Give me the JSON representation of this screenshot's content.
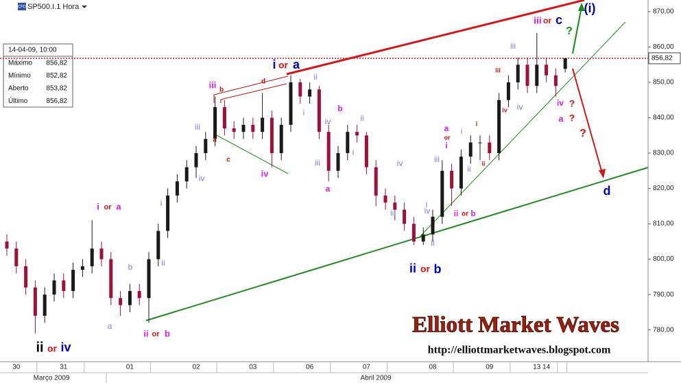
{
  "chart_data": {
    "type": "candlestick",
    "symbol": "SP500.I.1 Hora",
    "badge": "CFD",
    "info": {
      "date": "14-04-09, 10:00",
      "rows": [
        [
          "Máximo",
          "856,82"
        ],
        [
          "Mínimo",
          "852,82"
        ],
        [
          "Aberto",
          "853,82"
        ],
        [
          "Último",
          "856,82"
        ]
      ]
    },
    "categories": [
      null,
      "30",
      null,
      null,
      null,
      null,
      "31",
      null,
      null,
      null,
      null,
      null,
      null,
      "01",
      null,
      null,
      null,
      null,
      null,
      null,
      "02",
      null,
      null,
      null,
      null,
      null,
      "03",
      null,
      null,
      null,
      null,
      null,
      "06",
      null,
      null,
      null,
      null,
      null,
      "07",
      null,
      null,
      null,
      null,
      null,
      null,
      "08",
      null,
      null,
      null,
      null,
      null,
      "09",
      null,
      null,
      null,
      null,
      "13",
      "14",
      null,
      null
    ],
    "months": [
      "Março 2009",
      "Abril 2009"
    ],
    "open": [
      805,
      803,
      798,
      792,
      784,
      790,
      794,
      791,
      797,
      798,
      803,
      800,
      789,
      787,
      791,
      789,
      800,
      808,
      818,
      822,
      826,
      830,
      834,
      843,
      837,
      836,
      838,
      836,
      840,
      830,
      838,
      850,
      846,
      848,
      836,
      825,
      830,
      836,
      835,
      826,
      818,
      816,
      814,
      810,
      805,
      807,
      812,
      825,
      820,
      829,
      833,
      833,
      830,
      845,
      850,
      855,
      849,
      855,
      852,
      853.82
    ],
    "high": [
      807,
      805,
      800,
      794,
      792,
      796,
      796,
      799,
      800,
      811,
      805,
      802,
      791,
      793,
      793,
      802,
      810,
      820,
      824,
      828,
      832,
      836,
      846,
      845,
      839,
      840,
      840,
      847,
      842,
      840,
      852,
      851,
      850,
      849,
      838,
      832,
      838,
      838,
      836,
      828,
      820,
      818,
      816,
      812,
      809,
      814,
      828,
      827,
      831,
      835,
      835,
      835,
      847,
      852,
      857,
      857,
      864,
      857,
      854,
      856.82
    ],
    "low": [
      801,
      796,
      790,
      779,
      782,
      788,
      789,
      789,
      795,
      796,
      798,
      787,
      784,
      785,
      787,
      782,
      798,
      806,
      816,
      820,
      823,
      828,
      832,
      835,
      834,
      834,
      834,
      834,
      826,
      828,
      836,
      844,
      844,
      834,
      822,
      823,
      828,
      833,
      824,
      815,
      814,
      811,
      808,
      804,
      804,
      805,
      810,
      815,
      818,
      827,
      828,
      828,
      828,
      843,
      848,
      847,
      847,
      850,
      846,
      852.82
    ],
    "close": [
      803,
      798,
      792,
      784,
      790,
      794,
      791,
      797,
      798,
      803,
      800,
      789,
      787,
      791,
      789,
      800,
      808,
      818,
      822,
      826,
      830,
      834,
      843,
      837,
      836,
      838,
      836,
      840,
      830,
      838,
      850,
      846,
      848,
      836,
      825,
      830,
      836,
      835,
      826,
      818,
      816,
      814,
      810,
      805,
      807,
      812,
      825,
      820,
      829,
      833,
      833,
      830,
      845,
      850,
      855,
      849,
      855,
      852,
      849,
      856.82
    ],
    "up_color": "#1a1a1a",
    "down_color": "#a0103a",
    "ylim": [
      771,
      873.3
    ],
    "yticks": [
      780,
      790,
      800,
      810,
      820,
      830,
      840,
      850,
      860,
      870
    ],
    "ytick_labels": [
      "780,00",
      "790,00",
      "800,00",
      "810,00",
      "820,00",
      "830,00",
      "840,00",
      "850,00",
      "860,00",
      "870,00"
    ],
    "last_price": {
      "value": 856.82,
      "label": "856,82"
    },
    "annotations": [
      {
        "text": "i",
        "color": "#0000c0"
      },
      {
        "text": "or",
        "color": "#e01010"
      },
      {
        "text": "a",
        "color": "#0000c0"
      },
      {
        "text": "ii",
        "color": "#000000"
      },
      {
        "text": "or",
        "color": "#e01010"
      },
      {
        "text": "iv",
        "color": "#0000c0"
      },
      {
        "text": "ii",
        "color": "#0000c0"
      },
      {
        "text": "or",
        "color": "#e01010"
      },
      {
        "text": "b",
        "color": "#0000c0"
      },
      {
        "text": "c",
        "color": "#0000c0"
      },
      {
        "text": "(i)",
        "color": "#0000c0"
      },
      {
        "text": "d",
        "color": "#0000c0"
      },
      {
        "text": "iii",
        "color": "#e020e0"
      },
      {
        "text": "or",
        "color": "#e01010"
      },
      {
        "text": "i",
        "color": "#e020e0"
      },
      {
        "text": "or",
        "color": "#e01010"
      },
      {
        "text": "a",
        "color": "#e020e0"
      },
      {
        "text": "ii",
        "color": "#e020e0"
      },
      {
        "text": "or",
        "color": "#e01010"
      },
      {
        "text": "b",
        "color": "#e020e0"
      },
      {
        "text": "iii",
        "color": "#e020e0"
      },
      {
        "text": "iv",
        "color": "#e020e0"
      },
      {
        "text": "b",
        "color": "#e020e0"
      },
      {
        "text": "a",
        "color": "#e020e0"
      },
      {
        "text": "a",
        "color": "#e020e0"
      },
      {
        "text": "i",
        "color": "#e020e0"
      },
      {
        "text": "ii",
        "color": "#e020e0"
      },
      {
        "text": "or",
        "color": "#e01010"
      },
      {
        "text": "b",
        "color": "#e020e0"
      },
      {
        "text": "iv",
        "color": "#e020e0"
      },
      {
        "text": "a",
        "color": "#e020e0"
      },
      {
        "text": "?",
        "color": "#1a8a1a"
      },
      {
        "text": "?",
        "color": "#e01010"
      },
      {
        "text": "?",
        "color": "#e01010"
      },
      {
        "text": "?",
        "color": "#e01010"
      },
      {
        "text": "iii",
        "color": "#8080e0"
      },
      {
        "text": "iv",
        "color": "#8080e0"
      },
      {
        "text": "i",
        "color": "#8080e0"
      },
      {
        "text": "ii",
        "color": "#8080e0"
      },
      {
        "text": "b",
        "color": "#8080e0"
      },
      {
        "text": "a",
        "color": "#8080e0"
      },
      {
        "text": "ii",
        "color": "#8080e0"
      },
      {
        "text": "i",
        "color": "#8080e0"
      },
      {
        "text": "iv",
        "color": "#8080e0"
      },
      {
        "text": "iii",
        "color": "#8080e0"
      },
      {
        "text": "ii",
        "color": "#8080e0"
      },
      {
        "text": "i",
        "color": "#8080e0"
      },
      {
        "text": "iv",
        "color": "#8080e0"
      },
      {
        "text": "iii",
        "color": "#8080e0"
      },
      {
        "text": "ii",
        "color": "#8080e0"
      },
      {
        "text": "i",
        "color": "#8080e0"
      },
      {
        "text": "iv",
        "color": "#8080e0"
      },
      {
        "text": "iii",
        "color": "#8080e0"
      },
      {
        "text": "i",
        "color": "#8080e0"
      },
      {
        "text": "ii",
        "color": "#8080e0"
      },
      {
        "text": "iii",
        "color": "#8080e0"
      },
      {
        "text": "iv",
        "color": "#8080e0"
      },
      {
        "text": "b",
        "color": "#c01010"
      },
      {
        "text": "d",
        "color": "#c01010"
      },
      {
        "text": "a",
        "color": "#c01010"
      },
      {
        "text": "c",
        "color": "#c01010"
      },
      {
        "text": "or",
        "color": "#c01010"
      },
      {
        "text": "i",
        "color": "#c01010"
      },
      {
        "text": "ii",
        "color": "#c01010"
      },
      {
        "text": "iii",
        "color": "#c01010"
      },
      {
        "text": "iv",
        "color": "#c01010"
      }
    ],
    "watermark": "Elliott Market Waves",
    "url": "http://elliottmarketwaves.blogspot.com"
  }
}
